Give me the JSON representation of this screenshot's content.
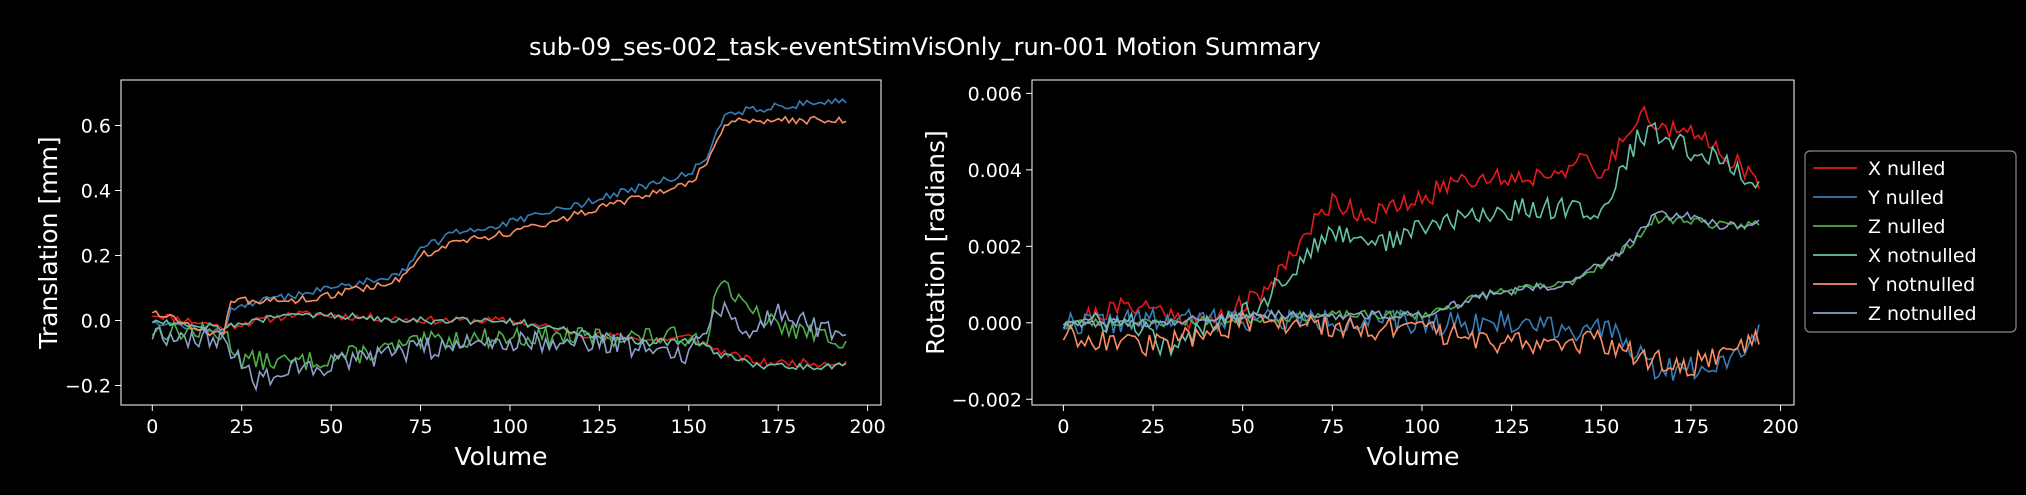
{
  "figure": {
    "title": "sub-09_ses-002_task-eventStimVisOnly_run-001 Motion Summary",
    "background": "#000000",
    "foreground": "#ffffff"
  },
  "chart_data": [
    {
      "type": "line",
      "title": "",
      "xlabel": "Volume",
      "ylabel": "Translation [mm]",
      "xlim": [
        -8.75,
        203.75
      ],
      "ylim": [
        -0.26,
        0.74
      ],
      "xticks": [
        0,
        25,
        50,
        75,
        100,
        125,
        150,
        175,
        200
      ],
      "xtick_labels": [
        "0",
        "25",
        "50",
        "75",
        "100",
        "125",
        "150",
        "175",
        "200"
      ],
      "yticks": [
        -0.2,
        0.0,
        0.2,
        0.4,
        0.6
      ],
      "ytick_labels": [
        "−0.2",
        "0.0",
        "0.2",
        "0.4",
        "0.6"
      ],
      "n_points": 195,
      "series": [
        {
          "name": "X nulled",
          "color": "#e41a1c",
          "anchors": [
            [
              0,
              0.02
            ],
            [
              10,
              0.0
            ],
            [
              20,
              -0.02
            ],
            [
              40,
              0.02
            ],
            [
              60,
              0.01
            ],
            [
              80,
              0.0
            ],
            [
              100,
              0.0
            ],
            [
              120,
              -0.04
            ],
            [
              140,
              -0.06
            ],
            [
              150,
              -0.05
            ],
            [
              160,
              -0.1
            ],
            [
              170,
              -0.13
            ],
            [
              194,
              -0.13
            ]
          ],
          "noise": 0.012,
          "seed": 11
        },
        {
          "name": "Y nulled",
          "color": "#377eb8",
          "anchors": [
            [
              0,
              0.0
            ],
            [
              20,
              -0.04
            ],
            [
              22,
              0.04
            ],
            [
              40,
              0.08
            ],
            [
              60,
              0.12
            ],
            [
              70,
              0.15
            ],
            [
              75,
              0.22
            ],
            [
              85,
              0.27
            ],
            [
              100,
              0.3
            ],
            [
              110,
              0.33
            ],
            [
              130,
              0.39
            ],
            [
              150,
              0.45
            ],
            [
              155,
              0.5
            ],
            [
              160,
              0.64
            ],
            [
              194,
              0.68
            ]
          ],
          "noise": 0.012,
          "seed": 12
        },
        {
          "name": "Z nulled",
          "color": "#4daf4a",
          "anchors": [
            [
              0,
              -0.03
            ],
            [
              20,
              -0.04
            ],
            [
              25,
              -0.12
            ],
            [
              40,
              -0.13
            ],
            [
              60,
              -0.1
            ],
            [
              80,
              -0.06
            ],
            [
              100,
              -0.05
            ],
            [
              130,
              -0.05
            ],
            [
              155,
              -0.05
            ],
            [
              159,
              0.14
            ],
            [
              165,
              0.04
            ],
            [
              175,
              -0.02
            ],
            [
              194,
              -0.06
            ]
          ],
          "noise": 0.03,
          "seed": 13
        },
        {
          "name": "X notnulled",
          "color": "#66c2a5",
          "anchors": [
            [
              0,
              0.0
            ],
            [
              10,
              -0.01
            ],
            [
              20,
              -0.02
            ],
            [
              40,
              0.02
            ],
            [
              60,
              0.01
            ],
            [
              80,
              0.0
            ],
            [
              100,
              0.0
            ],
            [
              120,
              -0.04
            ],
            [
              140,
              -0.07
            ],
            [
              150,
              -0.06
            ],
            [
              160,
              -0.11
            ],
            [
              170,
              -0.14
            ],
            [
              194,
              -0.14
            ]
          ],
          "noise": 0.012,
          "seed": 14
        },
        {
          "name": "Y notnulled",
          "color": "#fc8d62",
          "anchors": [
            [
              0,
              0.03
            ],
            [
              20,
              -0.05
            ],
            [
              22,
              0.06
            ],
            [
              40,
              0.06
            ],
            [
              60,
              0.1
            ],
            [
              70,
              0.13
            ],
            [
              75,
              0.2
            ],
            [
              85,
              0.24
            ],
            [
              100,
              0.27
            ],
            [
              110,
              0.3
            ],
            [
              130,
              0.36
            ],
            [
              150,
              0.42
            ],
            [
              155,
              0.48
            ],
            [
              160,
              0.61
            ],
            [
              194,
              0.62
            ]
          ],
          "noise": 0.012,
          "seed": 15
        },
        {
          "name": "Z notnulled",
          "color": "#8da0cb",
          "anchors": [
            [
              0,
              -0.04
            ],
            [
              20,
              -0.06
            ],
            [
              28,
              -0.18
            ],
            [
              40,
              -0.15
            ],
            [
              60,
              -0.12
            ],
            [
              80,
              -0.08
            ],
            [
              100,
              -0.06
            ],
            [
              130,
              -0.07
            ],
            [
              150,
              -0.1
            ],
            [
              160,
              0.06
            ],
            [
              165,
              -0.05
            ],
            [
              175,
              0.03
            ],
            [
              194,
              -0.05
            ]
          ],
          "noise": 0.035,
          "seed": 16
        }
      ]
    },
    {
      "type": "line",
      "title": "",
      "xlabel": "Volume",
      "ylabel": "Rotation [radians]",
      "xlim": [
        -8.75,
        203.75
      ],
      "ylim": [
        -0.00215,
        0.00635
      ],
      "xticks": [
        0,
        25,
        50,
        75,
        100,
        125,
        150,
        175,
        200
      ],
      "xtick_labels": [
        "0",
        "25",
        "50",
        "75",
        "100",
        "125",
        "150",
        "175",
        "200"
      ],
      "yticks": [
        -0.002,
        0.0,
        0.002,
        0.004,
        0.006
      ],
      "ytick_labels": [
        "−0.002",
        "0.000",
        "0.002",
        "0.004",
        "0.006"
      ],
      "n_points": 195,
      "series": [
        {
          "name": "X nulled",
          "color": "#e41a1c",
          "anchors": [
            [
              0,
              0.0
            ],
            [
              20,
              0.0005
            ],
            [
              40,
              0.0
            ],
            [
              55,
              0.0007
            ],
            [
              65,
              0.002
            ],
            [
              75,
              0.0032
            ],
            [
              85,
              0.0028
            ],
            [
              100,
              0.0032
            ],
            [
              110,
              0.0038
            ],
            [
              130,
              0.0038
            ],
            [
              145,
              0.0042
            ],
            [
              150,
              0.0038
            ],
            [
              160,
              0.0055
            ],
            [
              170,
              0.005
            ],
            [
              180,
              0.0048
            ],
            [
              190,
              0.004
            ],
            [
              194,
              0.0035
            ]
          ],
          "noise": 0.00028,
          "seed": 21
        },
        {
          "name": "Y nulled",
          "color": "#377eb8",
          "anchors": [
            [
              0,
              0.0
            ],
            [
              50,
              0.0001
            ],
            [
              100,
              0.0
            ],
            [
              130,
              0.0
            ],
            [
              155,
              -0.0003
            ],
            [
              165,
              -0.0012
            ],
            [
              175,
              -0.0012
            ],
            [
              185,
              -0.0009
            ],
            [
              194,
              -0.0003
            ]
          ],
          "noise": 0.00032,
          "seed": 22
        },
        {
          "name": "Z nulled",
          "color": "#4daf4a",
          "anchors": [
            [
              0,
              0.0
            ],
            [
              25,
              0.0
            ],
            [
              50,
              0.0001
            ],
            [
              75,
              0.0002
            ],
            [
              100,
              0.0002
            ],
            [
              120,
              0.0008
            ],
            [
              140,
              0.001
            ],
            [
              155,
              0.0018
            ],
            [
              165,
              0.0027
            ],
            [
              175,
              0.0027
            ],
            [
              185,
              0.0025
            ],
            [
              194,
              0.0026
            ]
          ],
          "noise": 0.00012,
          "seed": 23
        },
        {
          "name": "X notnulled",
          "color": "#66c2a5",
          "anchors": [
            [
              0,
              0.0
            ],
            [
              20,
              0.0
            ],
            [
              30,
              -0.0008
            ],
            [
              40,
              0.0
            ],
            [
              55,
              0.0005
            ],
            [
              65,
              0.0015
            ],
            [
              75,
              0.0024
            ],
            [
              90,
              0.0021
            ],
            [
              100,
              0.0025
            ],
            [
              115,
              0.0028
            ],
            [
              130,
              0.003
            ],
            [
              145,
              0.003
            ],
            [
              150,
              0.0028
            ],
            [
              160,
              0.0048
            ],
            [
              165,
              0.005
            ],
            [
              175,
              0.0045
            ],
            [
              185,
              0.0042
            ],
            [
              194,
              0.0036
            ]
          ],
          "noise": 0.00028,
          "seed": 24
        },
        {
          "name": "Y notnulled",
          "color": "#fc8d62",
          "anchors": [
            [
              0,
              -0.0003
            ],
            [
              25,
              -0.0006
            ],
            [
              50,
              0.0
            ],
            [
              100,
              -0.0002
            ],
            [
              120,
              -0.0005
            ],
            [
              150,
              -0.0005
            ],
            [
              165,
              -0.001
            ],
            [
              175,
              -0.0011
            ],
            [
              185,
              -0.0008
            ],
            [
              194,
              -0.0003
            ]
          ],
          "noise": 0.0003,
          "seed": 25
        },
        {
          "name": "Z notnulled",
          "color": "#8da0cb",
          "anchors": [
            [
              0,
              0.0
            ],
            [
              25,
              0.0
            ],
            [
              50,
              0.0002
            ],
            [
              75,
              0.0002
            ],
            [
              100,
              0.0002
            ],
            [
              120,
              0.0008
            ],
            [
              140,
              0.001
            ],
            [
              155,
              0.0018
            ],
            [
              165,
              0.0028
            ],
            [
              175,
              0.0028
            ],
            [
              185,
              0.0025
            ],
            [
              194,
              0.0027
            ]
          ],
          "noise": 0.00012,
          "seed": 26
        }
      ]
    }
  ],
  "legend": {
    "placement": "right of right panel",
    "labels": [
      "X nulled",
      "Y nulled",
      "Z nulled",
      "X notnulled",
      "Y notnulled",
      "Z notnulled"
    ],
    "colors": [
      "#e41a1c",
      "#377eb8",
      "#4daf4a",
      "#66c2a5",
      "#fc8d62",
      "#8da0cb"
    ]
  }
}
